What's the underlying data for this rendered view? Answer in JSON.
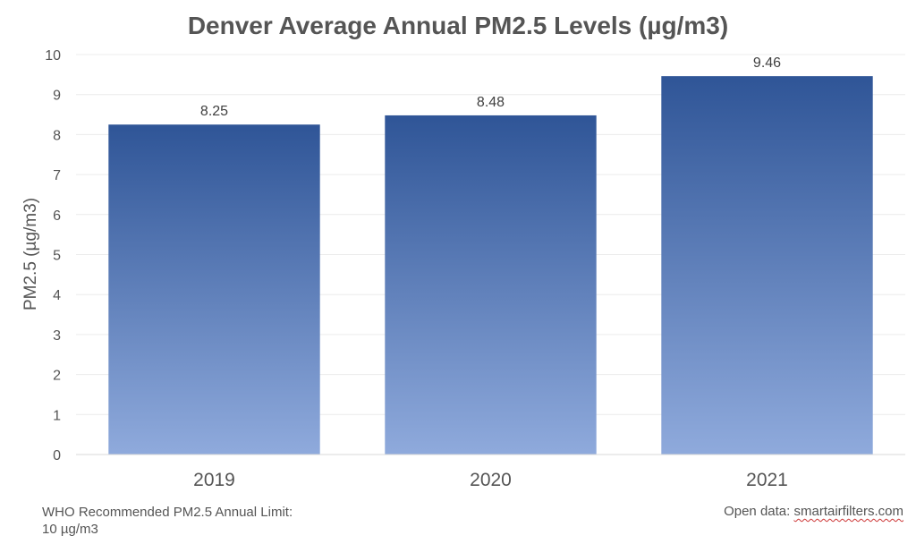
{
  "chart_data": {
    "type": "bar",
    "title": "Denver Average Annual PM2.5 Levels (µg/m3)",
    "xlabel": "",
    "ylabel": "PM2.5 (µg/m3)",
    "categories": [
      "2019",
      "2020",
      "2021"
    ],
    "values": [
      8.25,
      8.48,
      9.46
    ],
    "data_labels": [
      "8.25",
      "8.48",
      "9.46"
    ],
    "ylim": [
      0,
      10
    ],
    "yticks": [
      0,
      1,
      2,
      3,
      4,
      5,
      6,
      7,
      8,
      9,
      10
    ],
    "grid": true,
    "legend": "none",
    "bar_color_top": "#2f5597",
    "bar_color_bottom": "#8faadc"
  },
  "footnote": {
    "line1": "WHO Recommended PM2.5 Annual Limit:",
    "line2": "10 µg/m3"
  },
  "source": {
    "prefix": "Open data: ",
    "link": "smartairfilters.com"
  }
}
